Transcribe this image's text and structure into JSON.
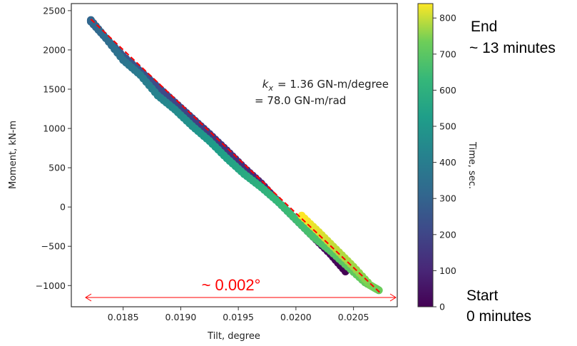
{
  "chart_data": {
    "type": "scatter",
    "xlabel": "Tilt, degree",
    "ylabel": "Moment, kN-m",
    "xlim": [
      0.01805,
      0.02088
    ],
    "ylim": [
      -1270,
      2590
    ],
    "xticks": [
      "0.0185",
      "0.0190",
      "0.0195",
      "0.0200",
      "0.0205"
    ],
    "xtick_values": [
      0.0185,
      0.019,
      0.0195,
      0.02,
      0.0205
    ],
    "yticks": [
      "−1000",
      "−500",
      "0",
      "500",
      "1000",
      "1500",
      "2000",
      "2500"
    ],
    "ytick_values": [
      -1000,
      -500,
      0,
      500,
      1000,
      1500,
      2000,
      2500
    ],
    "grid": false,
    "colormap": "viridis",
    "colorbar": {
      "label": "Time, sec.",
      "range": [
        0,
        840
      ],
      "ticks": [
        "0",
        "100",
        "200",
        "300",
        "400",
        "500",
        "600",
        "700",
        "800"
      ],
      "tick_values": [
        0,
        100,
        200,
        300,
        400,
        500,
        600,
        700,
        800
      ]
    },
    "points_columns": [
      "tilt_deg",
      "moment_kNm",
      "time_s"
    ],
    "points": [
      [
        0.02043,
        -820,
        0
      ],
      [
        0.0203,
        -600,
        20
      ],
      [
        0.02015,
        -380,
        40
      ],
      [
        0.02,
        -160,
        60
      ],
      [
        0.01985,
        60,
        80
      ],
      [
        0.0197,
        300,
        100
      ],
      [
        0.01955,
        500,
        120
      ],
      [
        0.0194,
        720,
        140
      ],
      [
        0.01925,
        930,
        160
      ],
      [
        0.0191,
        1130,
        180
      ],
      [
        0.01895,
        1330,
        200
      ],
      [
        0.0188,
        1530,
        220
      ],
      [
        0.01865,
        1730,
        240
      ],
      [
        0.0185,
        1920,
        260
      ],
      [
        0.01835,
        2150,
        280
      ],
      [
        0.01822,
        2380,
        300
      ],
      [
        0.01822,
        2360,
        310
      ],
      [
        0.01835,
        2150,
        330
      ],
      [
        0.0185,
        1870,
        360
      ],
      [
        0.01865,
        1680,
        390
      ],
      [
        0.0188,
        1420,
        420
      ],
      [
        0.01895,
        1240,
        450
      ],
      [
        0.0191,
        1030,
        480
      ],
      [
        0.01925,
        840,
        510
      ],
      [
        0.0194,
        620,
        540
      ],
      [
        0.01955,
        420,
        570
      ],
      [
        0.0197,
        250,
        600
      ],
      [
        0.01985,
        60,
        630
      ],
      [
        0.02,
        -160,
        650
      ],
      [
        0.02015,
        -380,
        670
      ],
      [
        0.0203,
        -560,
        690
      ],
      [
        0.02045,
        -760,
        705
      ],
      [
        0.0206,
        -960,
        715
      ],
      [
        0.02072,
        -1060,
        725
      ],
      [
        0.02065,
        -1000,
        740
      ],
      [
        0.0205,
        -760,
        770
      ],
      [
        0.02035,
        -540,
        790
      ],
      [
        0.0202,
        -320,
        815
      ],
      [
        0.02005,
        -110,
        840
      ]
    ],
    "fit_line": {
      "from": [
        0.01822,
        2390
      ],
      "to": [
        0.02073,
        -1090
      ],
      "color": "#ff0000",
      "style": "dashed"
    },
    "annotations": {
      "stiffness_line1": "= 1.36 GN-m/degree",
      "stiffness_symbol": "k",
      "stiffness_subscript": "x",
      "stiffness_line2": "= 78.0 GN-m/rad",
      "range_label": "~ 0.002°",
      "range_color": "#ff0000"
    }
  },
  "side_labels": {
    "end": "End",
    "end_time": "~ 13 minutes",
    "start": "Start",
    "start_time": "0 minutes"
  }
}
